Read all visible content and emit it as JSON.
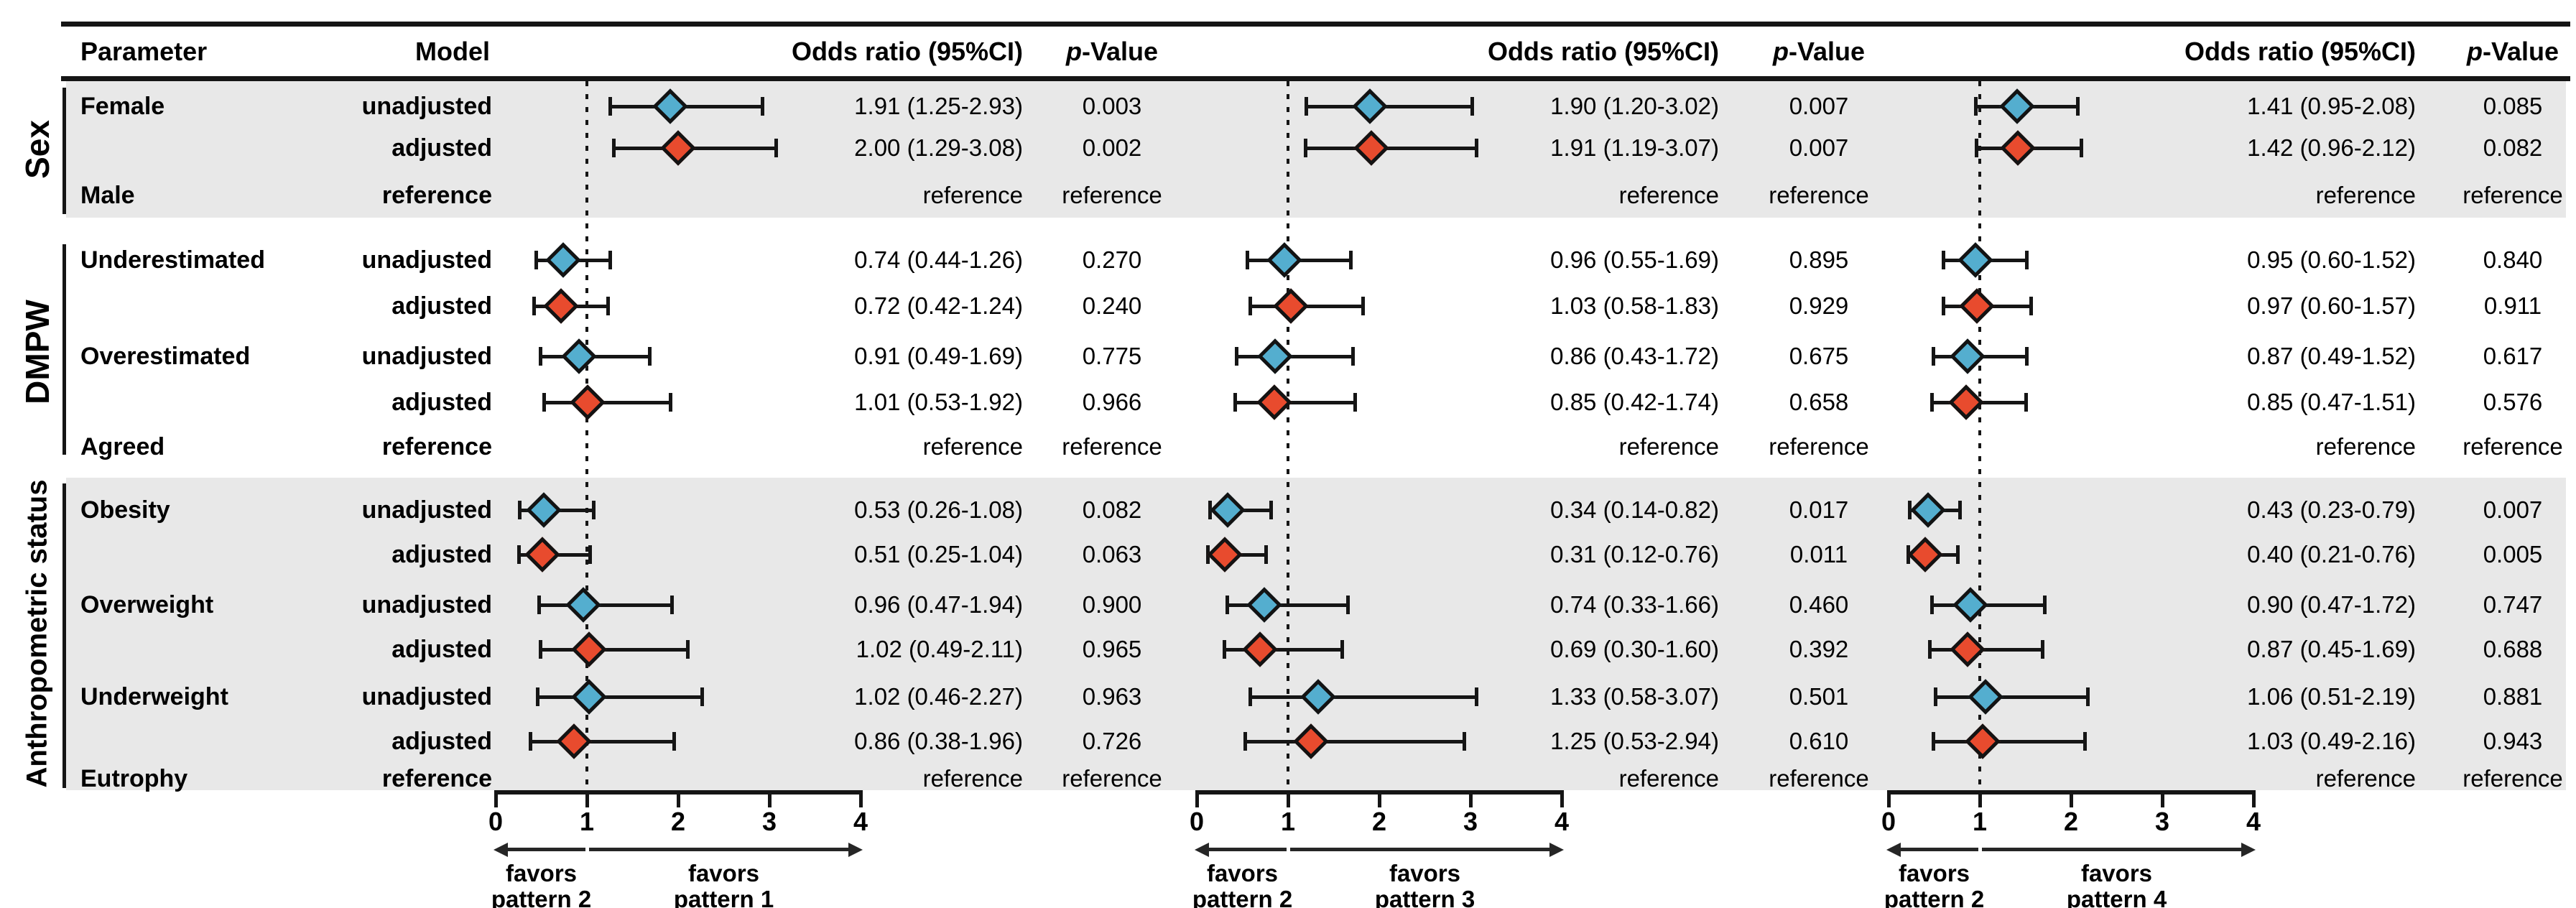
{
  "chart_data": {
    "type": "forest",
    "title": "",
    "columns": {
      "parameter": "Parameter",
      "model": "Model"
    },
    "axis": {
      "min": 0,
      "max": 4,
      "ticks": [
        "0",
        "1",
        "2",
        "3",
        "4"
      ],
      "ref_value": 1,
      "grid": false
    },
    "colors": {
      "unadjusted": "#54aecf",
      "adjusted": "#e84b2e",
      "band": "#e8e8e8",
      "line": "#151515"
    },
    "panels": [
      {
        "or_header": "Odds ratio (95%CI)",
        "p_header_italic": "p",
        "p_header_rest": "-Value",
        "favors_left_line1": "favors",
        "favors_left_line2": "pattern 2",
        "favors_right_line1": "favors",
        "favors_right_line2": "pattern 1"
      },
      {
        "or_header": "Odds ratio (95%CI)",
        "p_header_italic": "p",
        "p_header_rest": "-Value",
        "favors_left_line1": "favors",
        "favors_left_line2": "pattern 2",
        "favors_right_line1": "favors",
        "favors_right_line2": "pattern 3"
      },
      {
        "or_header": "Odds ratio (95%CI)",
        "p_header_italic": "p",
        "p_header_rest": "-Value",
        "favors_left_line1": "favors",
        "favors_left_line2": "pattern 2",
        "favors_right_line1": "favors",
        "favors_right_line2": "pattern 4"
      }
    ],
    "sections": [
      {
        "label": "Sex",
        "shaded": true,
        "rows": [
          {
            "parameter": "Female",
            "model": "unadjusted",
            "reference": false,
            "results": [
              {
                "or": 1.91,
                "lo": 1.25,
                "hi": 2.93,
                "or_text": "1.91 (1.25-2.93)",
                "p": "0.003"
              },
              {
                "or": 1.9,
                "lo": 1.2,
                "hi": 3.02,
                "or_text": "1.90 (1.20-3.02)",
                "p": "0.007"
              },
              {
                "or": 1.41,
                "lo": 0.95,
                "hi": 2.08,
                "or_text": "1.41 (0.95-2.08)",
                "p": "0.085"
              }
            ]
          },
          {
            "parameter": "",
            "model": "adjusted",
            "reference": false,
            "results": [
              {
                "or": 2.0,
                "lo": 1.29,
                "hi": 3.08,
                "or_text": "2.00 (1.29-3.08)",
                "p": "0.002"
              },
              {
                "or": 1.91,
                "lo": 1.19,
                "hi": 3.07,
                "or_text": "1.91 (1.19-3.07)",
                "p": "0.007"
              },
              {
                "or": 1.42,
                "lo": 0.96,
                "hi": 2.12,
                "or_text": "1.42 (0.96-2.12)",
                "p": "0.082"
              }
            ]
          },
          {
            "parameter": "Male",
            "model": "reference",
            "reference": true,
            "reference_text": "reference"
          }
        ]
      },
      {
        "label": "DMPW",
        "shaded": false,
        "rows": [
          {
            "parameter": "Underestimated",
            "model": "unadjusted",
            "reference": false,
            "results": [
              {
                "or": 0.74,
                "lo": 0.44,
                "hi": 1.26,
                "or_text": "0.74 (0.44-1.26)",
                "p": "0.270"
              },
              {
                "or": 0.96,
                "lo": 0.55,
                "hi": 1.69,
                "or_text": "0.96 (0.55-1.69)",
                "p": "0.895"
              },
              {
                "or": 0.95,
                "lo": 0.6,
                "hi": 1.52,
                "or_text": "0.95 (0.60-1.52)",
                "p": "0.840"
              }
            ]
          },
          {
            "parameter": "",
            "model": "adjusted",
            "reference": false,
            "results": [
              {
                "or": 0.72,
                "lo": 0.42,
                "hi": 1.24,
                "or_text": "0.72 (0.42-1.24)",
                "p": "0.240"
              },
              {
                "or": 1.03,
                "lo": 0.58,
                "hi": 1.83,
                "or_text": "1.03 (0.58-1.83)",
                "p": "0.929"
              },
              {
                "or": 0.97,
                "lo": 0.6,
                "hi": 1.57,
                "or_text": "0.97 (0.60-1.57)",
                "p": "0.911"
              }
            ]
          },
          {
            "parameter": "Overestimated",
            "model": "unadjusted",
            "reference": false,
            "results": [
              {
                "or": 0.91,
                "lo": 0.49,
                "hi": 1.69,
                "or_text": "0.91 (0.49-1.69)",
                "p": "0.775"
              },
              {
                "or": 0.86,
                "lo": 0.43,
                "hi": 1.72,
                "or_text": "0.86 (0.43-1.72)",
                "p": "0.675"
              },
              {
                "or": 0.87,
                "lo": 0.49,
                "hi": 1.52,
                "or_text": "0.87 (0.49-1.52)",
                "p": "0.617"
              }
            ]
          },
          {
            "parameter": "",
            "model": "adjusted",
            "reference": false,
            "results": [
              {
                "or": 1.01,
                "lo": 0.53,
                "hi": 1.92,
                "or_text": "1.01 (0.53-1.92)",
                "p": "0.966"
              },
              {
                "or": 0.85,
                "lo": 0.42,
                "hi": 1.74,
                "or_text": "0.85 (0.42-1.74)",
                "p": "0.658"
              },
              {
                "or": 0.85,
                "lo": 0.47,
                "hi": 1.51,
                "or_text": "0.85 (0.47-1.51)",
                "p": "0.576"
              }
            ]
          },
          {
            "parameter": "Agreed",
            "model": "reference",
            "reference": true,
            "reference_text": "reference"
          }
        ]
      },
      {
        "label": "Anthropometric status",
        "shaded": true,
        "rows": [
          {
            "parameter": "Obesity",
            "model": "unadjusted",
            "reference": false,
            "results": [
              {
                "or": 0.53,
                "lo": 0.26,
                "hi": 1.08,
                "or_text": "0.53 (0.26-1.08)",
                "p": "0.082"
              },
              {
                "or": 0.34,
                "lo": 0.14,
                "hi": 0.82,
                "or_text": "0.34 (0.14-0.82)",
                "p": "0.017"
              },
              {
                "or": 0.43,
                "lo": 0.23,
                "hi": 0.79,
                "or_text": "0.43 (0.23-0.79)",
                "p": "0.007"
              }
            ]
          },
          {
            "parameter": "",
            "model": "adjusted",
            "reference": false,
            "results": [
              {
                "or": 0.51,
                "lo": 0.25,
                "hi": 1.04,
                "or_text": "0.51 (0.25-1.04)",
                "p": "0.063"
              },
              {
                "or": 0.31,
                "lo": 0.12,
                "hi": 0.76,
                "or_text": "0.31 (0.12-0.76)",
                "p": "0.011"
              },
              {
                "or": 0.4,
                "lo": 0.21,
                "hi": 0.76,
                "or_text": "0.40 (0.21-0.76)",
                "p": "0.005"
              }
            ]
          },
          {
            "parameter": "Overweight",
            "model": "unadjusted",
            "reference": false,
            "results": [
              {
                "or": 0.96,
                "lo": 0.47,
                "hi": 1.94,
                "or_text": "0.96 (0.47-1.94)",
                "p": "0.900"
              },
              {
                "or": 0.74,
                "lo": 0.33,
                "hi": 1.66,
                "or_text": "0.74 (0.33-1.66)",
                "p": "0.460"
              },
              {
                "or": 0.9,
                "lo": 0.47,
                "hi": 1.72,
                "or_text": "0.90 (0.47-1.72)",
                "p": "0.747"
              }
            ]
          },
          {
            "parameter": "",
            "model": "adjusted",
            "reference": false,
            "results": [
              {
                "or": 1.02,
                "lo": 0.49,
                "hi": 2.11,
                "or_text": "1.02 (0.49-2.11)",
                "p": "0.965"
              },
              {
                "or": 0.69,
                "lo": 0.3,
                "hi": 1.6,
                "or_text": "0.69 (0.30-1.60)",
                "p": "0.392"
              },
              {
                "or": 0.87,
                "lo": 0.45,
                "hi": 1.69,
                "or_text": "0.87 (0.45-1.69)",
                "p": "0.688"
              }
            ]
          },
          {
            "parameter": "Underweight",
            "model": "unadjusted",
            "reference": false,
            "results": [
              {
                "or": 1.02,
                "lo": 0.46,
                "hi": 2.27,
                "or_text": "1.02 (0.46-2.27)",
                "p": "0.963"
              },
              {
                "or": 1.33,
                "lo": 0.58,
                "hi": 3.07,
                "or_text": "1.33 (0.58-3.07)",
                "p": "0.501"
              },
              {
                "or": 1.06,
                "lo": 0.51,
                "hi": 2.19,
                "or_text": "1.06 (0.51-2.19)",
                "p": "0.881"
              }
            ]
          },
          {
            "parameter": "",
            "model": "adjusted",
            "reference": false,
            "results": [
              {
                "or": 0.86,
                "lo": 0.38,
                "hi": 1.96,
                "or_text": "0.86 (0.38-1.96)",
                "p": "0.726"
              },
              {
                "or": 1.25,
                "lo": 0.53,
                "hi": 2.94,
                "or_text": "1.25 (0.53-2.94)",
                "p": "0.610"
              },
              {
                "or": 1.03,
                "lo": 0.49,
                "hi": 2.16,
                "or_text": "1.03 (0.49-2.16)",
                "p": "0.943"
              }
            ]
          },
          {
            "parameter": "Eutrophy",
            "model": "reference",
            "reference": true,
            "reference_text": "reference"
          }
        ]
      }
    ]
  }
}
